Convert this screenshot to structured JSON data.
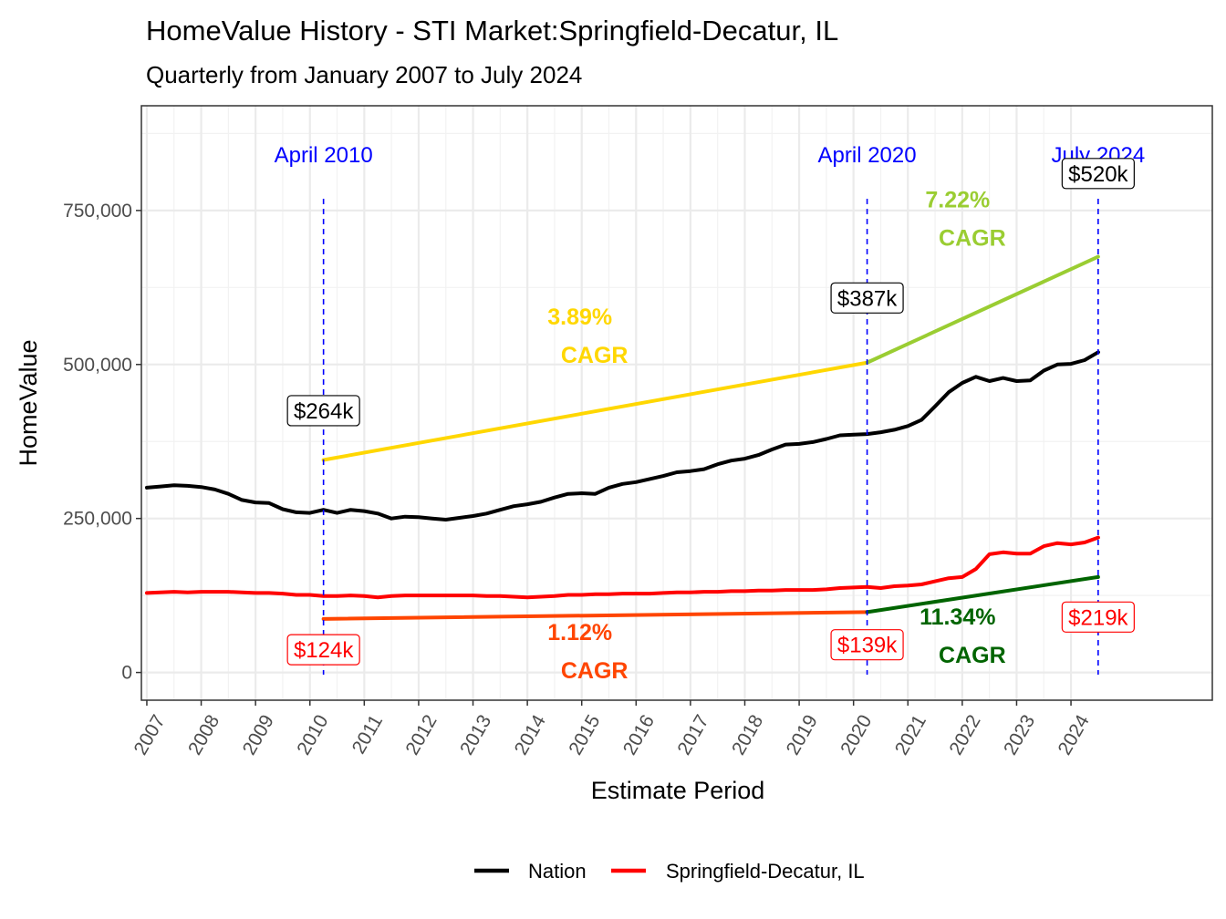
{
  "chart_data": {
    "type": "line",
    "title": "HomeValue History - STI Market:Springfield-Decatur, IL",
    "subtitle": "Quarterly from January 2007 to July 2024",
    "xlabel": "Estimate Period",
    "ylabel": "HomeValue",
    "xlim": [
      2006.9,
      2026.6
    ],
    "ylim": [
      -45000,
      920000
    ],
    "y_ticks": [
      0,
      250000,
      500000,
      750000
    ],
    "y_tick_labels": [
      "0",
      "250,000",
      "500,000",
      "750,000"
    ],
    "x_ticks": [
      2007,
      2008,
      2009,
      2010,
      2011,
      2012,
      2013,
      2014,
      2015,
      2016,
      2017,
      2018,
      2019,
      2020,
      2021,
      2022,
      2023,
      2024
    ],
    "x_tick_labels": [
      "2007",
      "2008",
      "2009",
      "2010",
      "2011",
      "2012",
      "2013",
      "2014",
      "2015",
      "2016",
      "2017",
      "2018",
      "2019",
      "2020",
      "2021",
      "2022",
      "2023",
      "2024"
    ],
    "grid": true,
    "legend_position": "bottom",
    "series": [
      {
        "name": "Nation",
        "color": "#000000",
        "x": [
          2007.0,
          2007.25,
          2007.5,
          2007.75,
          2008.0,
          2008.25,
          2008.5,
          2008.75,
          2009.0,
          2009.25,
          2009.5,
          2009.75,
          2010.0,
          2010.25,
          2010.5,
          2010.75,
          2011.0,
          2011.25,
          2011.5,
          2011.75,
          2012.0,
          2012.25,
          2012.5,
          2012.75,
          2013.0,
          2013.25,
          2013.5,
          2013.75,
          2014.0,
          2014.25,
          2014.5,
          2014.75,
          2015.0,
          2015.25,
          2015.5,
          2015.75,
          2016.0,
          2016.25,
          2016.5,
          2016.75,
          2017.0,
          2017.25,
          2017.5,
          2017.75,
          2018.0,
          2018.25,
          2018.5,
          2018.75,
          2019.0,
          2019.25,
          2019.5,
          2019.75,
          2020.0,
          2020.25,
          2020.5,
          2020.75,
          2021.0,
          2021.25,
          2021.5,
          2021.75,
          2022.0,
          2022.25,
          2022.5,
          2022.75,
          2023.0,
          2023.25,
          2023.5,
          2023.75,
          2024.0,
          2024.25,
          2024.5
        ],
        "values": [
          300000,
          302000,
          304000,
          303000,
          301000,
          297000,
          290000,
          280000,
          276000,
          275000,
          265000,
          260000,
          259000,
          264000,
          259000,
          264000,
          262000,
          258000,
          250000,
          253000,
          252000,
          250000,
          248000,
          251000,
          254000,
          258000,
          264000,
          270000,
          273000,
          277000,
          284000,
          290000,
          291000,
          290000,
          300000,
          306000,
          309000,
          314000,
          319000,
          325000,
          327000,
          330000,
          338000,
          344000,
          347000,
          353000,
          362000,
          370000,
          371000,
          374000,
          379000,
          385000,
          386000,
          387000,
          390000,
          394000,
          400000,
          410000,
          432000,
          455000,
          470000,
          480000,
          473000,
          478000,
          473000,
          474000,
          490000,
          500000,
          501000,
          507000,
          520000
        ]
      },
      {
        "name": "Springfield-Decatur, IL",
        "color": "#ff0000",
        "x": [
          2007.0,
          2007.25,
          2007.5,
          2007.75,
          2008.0,
          2008.25,
          2008.5,
          2008.75,
          2009.0,
          2009.25,
          2009.5,
          2009.75,
          2010.0,
          2010.25,
          2010.5,
          2010.75,
          2011.0,
          2011.25,
          2011.5,
          2011.75,
          2012.0,
          2012.25,
          2012.5,
          2012.75,
          2013.0,
          2013.25,
          2013.5,
          2013.75,
          2014.0,
          2014.25,
          2014.5,
          2014.75,
          2015.0,
          2015.25,
          2015.5,
          2015.75,
          2016.0,
          2016.25,
          2016.5,
          2016.75,
          2017.0,
          2017.25,
          2017.5,
          2017.75,
          2018.0,
          2018.25,
          2018.5,
          2018.75,
          2019.0,
          2019.25,
          2019.5,
          2019.75,
          2020.0,
          2020.25,
          2020.5,
          2020.75,
          2021.0,
          2021.25,
          2021.5,
          2021.75,
          2022.0,
          2022.25,
          2022.5,
          2022.75,
          2023.0,
          2023.25,
          2023.5,
          2023.75,
          2024.0,
          2024.25,
          2024.5
        ],
        "values": [
          129000,
          130000,
          131000,
          130000,
          131000,
          131000,
          131000,
          130000,
          129000,
          129000,
          128000,
          126000,
          126000,
          124000,
          124000,
          125000,
          124000,
          122000,
          124000,
          125000,
          125000,
          125000,
          125000,
          125000,
          125000,
          124000,
          124000,
          123000,
          122000,
          123000,
          124000,
          126000,
          126000,
          127000,
          127000,
          128000,
          128000,
          128000,
          129000,
          130000,
          130000,
          131000,
          131000,
          132000,
          132000,
          133000,
          133000,
          134000,
          134000,
          134000,
          135000,
          137000,
          138000,
          139000,
          137000,
          140000,
          141000,
          143000,
          148000,
          153000,
          155000,
          168000,
          192000,
          195000,
          193000,
          193000,
          205000,
          210000,
          208000,
          211000,
          219000
        ]
      }
    ],
    "trend_lines": [
      {
        "from_x": 2010.25,
        "from_y": 345000,
        "to_x": 2020.25,
        "to_y": 503000,
        "color": "#ffd700"
      },
      {
        "from_x": 2020.25,
        "from_y": 503000,
        "to_x": 2024.5,
        "to_y": 675000,
        "color": "#9acd32"
      },
      {
        "from_x": 2010.25,
        "from_y": 87000,
        "to_x": 2020.25,
        "to_y": 98000,
        "color": "#ff4500"
      },
      {
        "from_x": 2020.25,
        "from_y": 98000,
        "to_x": 2024.5,
        "to_y": 155000,
        "color": "#006400"
      }
    ],
    "markers": [
      {
        "x": 2010.25,
        "label": "April 2010"
      },
      {
        "x": 2020.25,
        "label": "April 2020"
      },
      {
        "x": 2024.5,
        "label": "July 2024"
      }
    ],
    "cagr_labels": [
      {
        "pct": "3.89%",
        "word": "CAGR",
        "x": 2015.1,
        "y": 565000,
        "color": "#ffd700"
      },
      {
        "pct": "7.22%",
        "word": "CAGR",
        "x": 2022.05,
        "y": 755000,
        "color": "#9acd32"
      },
      {
        "pct": "1.12%",
        "word": "CAGR",
        "x": 2015.1,
        "y": 53000,
        "color": "#ff4500"
      },
      {
        "pct": "11.34%",
        "word": "CAGR",
        "x": 2022.05,
        "y": 78000,
        "color": "#006400"
      }
    ],
    "price_labels": [
      {
        "text": "$264k",
        "x": 2010.25,
        "y": 425000,
        "color": "#000000"
      },
      {
        "text": "$387k",
        "x": 2020.25,
        "y": 608000,
        "color": "#000000"
      },
      {
        "text": "$520k",
        "x": 2024.5,
        "y": 810000,
        "color": "#000000"
      },
      {
        "text": "$124k",
        "x": 2010.25,
        "y": 37000,
        "color": "#ff0000"
      },
      {
        "text": "$139k",
        "x": 2020.25,
        "y": 45000,
        "color": "#ff0000"
      },
      {
        "text": "$219k",
        "x": 2024.5,
        "y": 90000,
        "color": "#ff0000"
      }
    ]
  }
}
